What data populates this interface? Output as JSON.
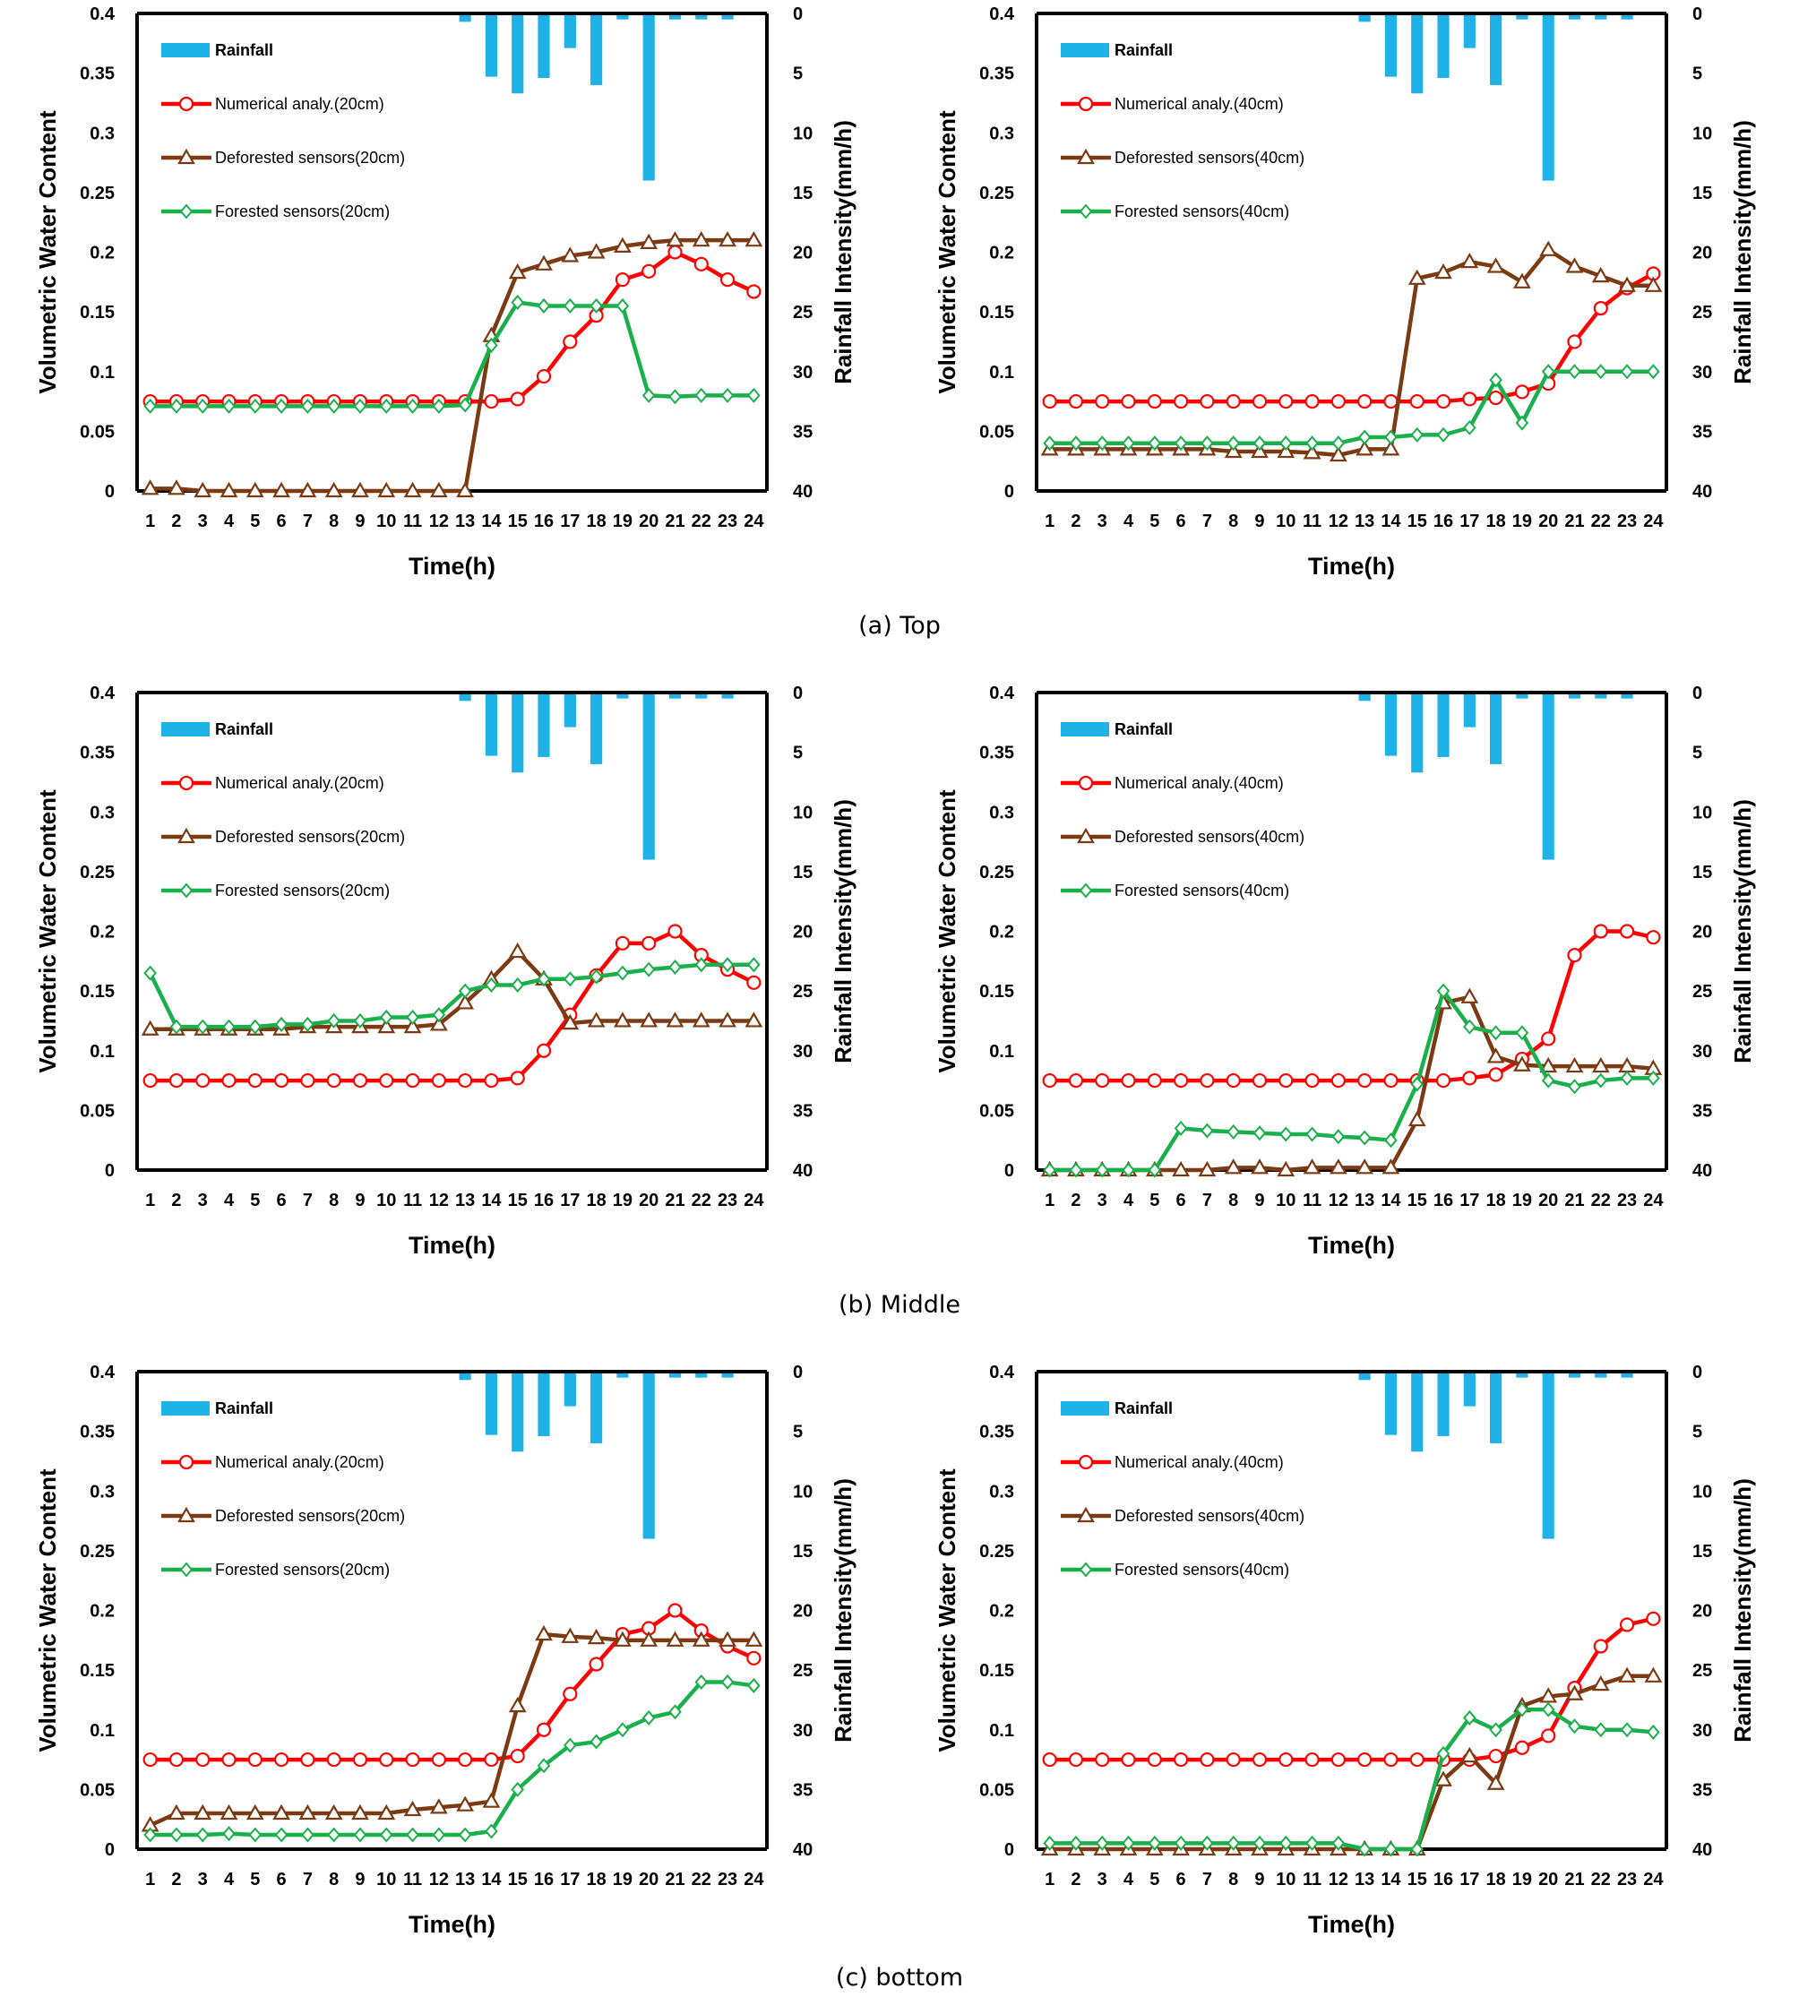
{
  "captions": [
    "(a)  Top",
    "(b)  Middle",
    "(c)  bottom"
  ],
  "colors": {
    "rainfall": "#1fb2e6",
    "numerical": "#ff0000",
    "deforested": "#7b3a12",
    "forested": "#19b04b"
  },
  "chart_data": [
    {
      "type": "line",
      "panel": "Top 20cm",
      "categories": [
        "1",
        "2",
        "3",
        "4",
        "5",
        "6",
        "7",
        "8",
        "9",
        "10",
        "11",
        "12",
        "13",
        "14",
        "15",
        "16",
        "17",
        "18",
        "19",
        "20",
        "21",
        "22",
        "23",
        "24"
      ],
      "xlabel": "Time(h)",
      "ylabel": "Volumetric Water Content",
      "y2label": "Rainfall Intensity(mm/h)",
      "ylim": [
        0,
        0.4
      ],
      "y2lim": [
        40,
        0
      ],
      "yticks": [
        "0",
        "0.05",
        "0.1",
        "0.15",
        "0.2",
        "0.25",
        "0.3",
        "0.35",
        "0.4"
      ],
      "y2ticks": [
        "0",
        "5",
        "10",
        "15",
        "20",
        "25",
        "30",
        "35",
        "40"
      ],
      "legend": "top-left",
      "rainfall": {
        "name": "Rainfall",
        "values": [
          0,
          0,
          0,
          0,
          0,
          0,
          0,
          0,
          0,
          0,
          0,
          0,
          0.7,
          5.3,
          6.7,
          5.4,
          2.9,
          6,
          0.5,
          14,
          0.5,
          0.5,
          0.5,
          0
        ]
      },
      "series": [
        {
          "name": "Numerical analy.(20cm)",
          "values": [
            0.075,
            0.075,
            0.075,
            0.075,
            0.075,
            0.075,
            0.075,
            0.075,
            0.075,
            0.075,
            0.075,
            0.075,
            0.075,
            0.075,
            0.077,
            0.096,
            0.125,
            0.147,
            0.177,
            0.184,
            0.2,
            0.19,
            0.177,
            0.167
          ]
        },
        {
          "name": "Deforested sensors(20cm)",
          "values": [
            0.002,
            0.002,
            0,
            0,
            0,
            0,
            0,
            0,
            0,
            0,
            0,
            0,
            0,
            0.13,
            0.183,
            0.19,
            0.197,
            0.2,
            0.205,
            0.208,
            0.21,
            0.21,
            0.21,
            0.21
          ]
        },
        {
          "name": "Forested sensors(20cm)",
          "values": [
            0.071,
            0.071,
            0.071,
            0.071,
            0.071,
            0.071,
            0.071,
            0.071,
            0.071,
            0.071,
            0.071,
            0.071,
            0.072,
            0.122,
            0.158,
            0.155,
            0.155,
            0.155,
            0.155,
            0.08,
            0.079,
            0.08,
            0.08,
            0.08
          ]
        }
      ]
    },
    {
      "type": "line",
      "panel": "Top 40cm",
      "categories": [
        "1",
        "2",
        "3",
        "4",
        "5",
        "6",
        "7",
        "8",
        "9",
        "10",
        "11",
        "12",
        "13",
        "14",
        "15",
        "16",
        "17",
        "18",
        "19",
        "20",
        "21",
        "22",
        "23",
        "24"
      ],
      "xlabel": "Time(h)",
      "ylabel": "Volumetric Water Content",
      "y2label": "Rainfall Intensity(mm/h)",
      "ylim": [
        0,
        0.4
      ],
      "y2lim": [
        40,
        0
      ],
      "yticks": [
        "0",
        "0.05",
        "0.1",
        "0.15",
        "0.2",
        "0.25",
        "0.3",
        "0.35",
        "0.4"
      ],
      "y2ticks": [
        "0",
        "5",
        "10",
        "15",
        "20",
        "25",
        "30",
        "35",
        "40"
      ],
      "legend": "top-left",
      "rainfall": {
        "name": "Rainfall",
        "values": [
          0,
          0,
          0,
          0,
          0,
          0,
          0,
          0,
          0,
          0,
          0,
          0,
          0.7,
          5.3,
          6.7,
          5.4,
          2.9,
          6,
          0.5,
          14,
          0.5,
          0.5,
          0.5,
          0
        ]
      },
      "series": [
        {
          "name": "Numerical analy.(40cm)",
          "values": [
            0.075,
            0.075,
            0.075,
            0.075,
            0.075,
            0.075,
            0.075,
            0.075,
            0.075,
            0.075,
            0.075,
            0.075,
            0.075,
            0.075,
            0.075,
            0.075,
            0.077,
            0.078,
            0.083,
            0.09,
            0.125,
            0.153,
            0.17,
            0.182
          ]
        },
        {
          "name": "Deforested sensors(40cm)",
          "values": [
            0.035,
            0.035,
            0.035,
            0.035,
            0.035,
            0.035,
            0.035,
            0.033,
            0.033,
            0.033,
            0.032,
            0.03,
            0.035,
            0.035,
            0.178,
            0.183,
            0.192,
            0.188,
            0.175,
            0.202,
            0.188,
            0.18,
            0.172,
            0.172
          ]
        },
        {
          "name": "Forested sensors(40cm)",
          "values": [
            0.04,
            0.04,
            0.04,
            0.04,
            0.04,
            0.04,
            0.04,
            0.04,
            0.04,
            0.04,
            0.04,
            0.04,
            0.045,
            0.045,
            0.047,
            0.047,
            0.053,
            0.093,
            0.057,
            0.1,
            0.1,
            0.1,
            0.1,
            0.1
          ]
        }
      ]
    },
    {
      "type": "line",
      "panel": "Middle 20cm",
      "categories": [
        "1",
        "2",
        "3",
        "4",
        "5",
        "6",
        "7",
        "8",
        "9",
        "10",
        "11",
        "12",
        "13",
        "14",
        "15",
        "16",
        "17",
        "18",
        "19",
        "20",
        "21",
        "22",
        "23",
        "24"
      ],
      "xlabel": "Time(h)",
      "ylabel": "Volumetric Water Content",
      "y2label": "Rainfall Intensity(mm/h)",
      "ylim": [
        0,
        0.4
      ],
      "y2lim": [
        40,
        0
      ],
      "yticks": [
        "0",
        "0.05",
        "0.1",
        "0.15",
        "0.2",
        "0.25",
        "0.3",
        "0.35",
        "0.4"
      ],
      "y2ticks": [
        "0",
        "5",
        "10",
        "15",
        "20",
        "25",
        "30",
        "35",
        "40"
      ],
      "legend": "top-left",
      "rainfall": {
        "name": "Rainfall",
        "values": [
          0,
          0,
          0,
          0,
          0,
          0,
          0,
          0,
          0,
          0,
          0,
          0,
          0.7,
          5.3,
          6.7,
          5.4,
          2.9,
          6,
          0.5,
          14,
          0.5,
          0.5,
          0.5,
          0
        ]
      },
      "series": [
        {
          "name": "Numerical analy.(20cm)",
          "values": [
            0.075,
            0.075,
            0.075,
            0.075,
            0.075,
            0.075,
            0.075,
            0.075,
            0.075,
            0.075,
            0.075,
            0.075,
            0.075,
            0.075,
            0.077,
            0.1,
            0.13,
            0.163,
            0.19,
            0.19,
            0.2,
            0.18,
            0.168,
            0.157
          ]
        },
        {
          "name": "Deforested sensors(20cm)",
          "values": [
            0.118,
            0.118,
            0.118,
            0.118,
            0.118,
            0.118,
            0.12,
            0.12,
            0.12,
            0.12,
            0.12,
            0.122,
            0.14,
            0.16,
            0.183,
            0.16,
            0.123,
            0.125,
            0.125,
            0.125,
            0.125,
            0.125,
            0.125,
            0.125
          ]
        },
        {
          "name": "Forested sensors(20cm)",
          "values": [
            0.165,
            0.12,
            0.12,
            0.12,
            0.12,
            0.122,
            0.122,
            0.125,
            0.125,
            0.128,
            0.128,
            0.13,
            0.15,
            0.155,
            0.155,
            0.16,
            0.16,
            0.162,
            0.165,
            0.168,
            0.17,
            0.172,
            0.172,
            0.172
          ]
        }
      ]
    },
    {
      "type": "line",
      "panel": "Middle 40cm",
      "categories": [
        "1",
        "2",
        "3",
        "4",
        "5",
        "6",
        "7",
        "8",
        "9",
        "10",
        "11",
        "12",
        "13",
        "14",
        "15",
        "16",
        "17",
        "18",
        "19",
        "20",
        "21",
        "22",
        "23",
        "24"
      ],
      "xlabel": "Time(h)",
      "ylabel": "Volumetric Water Content",
      "y2label": "Rainfall Intensity(mm/h)",
      "ylim": [
        0,
        0.4
      ],
      "y2lim": [
        40,
        0
      ],
      "yticks": [
        "0",
        "0.05",
        "0.1",
        "0.15",
        "0.2",
        "0.25",
        "0.3",
        "0.35",
        "0.4"
      ],
      "y2ticks": [
        "0",
        "5",
        "10",
        "15",
        "20",
        "25",
        "30",
        "35",
        "40"
      ],
      "legend": "top-left",
      "rainfall": {
        "name": "Rainfall",
        "values": [
          0,
          0,
          0,
          0,
          0,
          0,
          0,
          0,
          0,
          0,
          0,
          0,
          0.7,
          5.3,
          6.7,
          5.4,
          2.9,
          6,
          0.5,
          14,
          0.5,
          0.5,
          0.5,
          0
        ]
      },
      "series": [
        {
          "name": "Numerical analy.(40cm)",
          "values": [
            0.075,
            0.075,
            0.075,
            0.075,
            0.075,
            0.075,
            0.075,
            0.075,
            0.075,
            0.075,
            0.075,
            0.075,
            0.075,
            0.075,
            0.075,
            0.075,
            0.077,
            0.08,
            0.093,
            0.11,
            0.18,
            0.2,
            0.2,
            0.195
          ]
        },
        {
          "name": "Deforested sensors(40cm)",
          "values": [
            0,
            0,
            0,
            0,
            0,
            0,
            0,
            0.002,
            0.002,
            0,
            0.002,
            0.002,
            0.002,
            0.002,
            0.042,
            0.14,
            0.145,
            0.095,
            0.088,
            0.087,
            0.087,
            0.087,
            0.087,
            0.085
          ]
        },
        {
          "name": "Forested sensors(40cm)",
          "values": [
            0,
            0,
            0,
            0,
            0,
            0.035,
            0.033,
            0.032,
            0.031,
            0.03,
            0.03,
            0.028,
            0.027,
            0.025,
            0.072,
            0.15,
            0.12,
            0.115,
            0.115,
            0.075,
            0.07,
            0.075,
            0.077,
            0.077
          ]
        }
      ]
    },
    {
      "type": "line",
      "panel": "bottom 20cm",
      "categories": [
        "1",
        "2",
        "3",
        "4",
        "5",
        "6",
        "7",
        "8",
        "9",
        "10",
        "11",
        "12",
        "13",
        "14",
        "15",
        "16",
        "17",
        "18",
        "19",
        "20",
        "21",
        "22",
        "23",
        "24"
      ],
      "xlabel": "Time(h)",
      "ylabel": "Volumetric Water Content",
      "y2label": "Rainfall Intensity(mm/h)",
      "ylim": [
        0,
        0.4
      ],
      "y2lim": [
        40,
        0
      ],
      "yticks": [
        "0",
        "0.05",
        "0.1",
        "0.15",
        "0.2",
        "0.25",
        "0.3",
        "0.35",
        "0.4"
      ],
      "y2ticks": [
        "0",
        "5",
        "10",
        "15",
        "20",
        "25",
        "30",
        "35",
        "40"
      ],
      "legend": "top-left",
      "rainfall": {
        "name": "Rainfall",
        "values": [
          0,
          0,
          0,
          0,
          0,
          0,
          0,
          0,
          0,
          0,
          0,
          0,
          0.7,
          5.3,
          6.7,
          5.4,
          2.9,
          6,
          0.5,
          14,
          0.5,
          0.5,
          0.5,
          0
        ]
      },
      "series": [
        {
          "name": "Numerical analy.(20cm)",
          "values": [
            0.075,
            0.075,
            0.075,
            0.075,
            0.075,
            0.075,
            0.075,
            0.075,
            0.075,
            0.075,
            0.075,
            0.075,
            0.075,
            0.075,
            0.078,
            0.1,
            0.13,
            0.155,
            0.18,
            0.185,
            0.2,
            0.183,
            0.17,
            0.16
          ]
        },
        {
          "name": "Deforested sensors(20cm)",
          "values": [
            0.02,
            0.03,
            0.03,
            0.03,
            0.03,
            0.03,
            0.03,
            0.03,
            0.03,
            0.03,
            0.033,
            0.035,
            0.037,
            0.04,
            0.12,
            0.18,
            0.178,
            0.177,
            0.175,
            0.175,
            0.175,
            0.175,
            0.175,
            0.175
          ]
        },
        {
          "name": "Forested sensors(20cm)",
          "values": [
            0.012,
            0.012,
            0.012,
            0.013,
            0.012,
            0.012,
            0.012,
            0.012,
            0.012,
            0.012,
            0.012,
            0.012,
            0.012,
            0.015,
            0.05,
            0.07,
            0.087,
            0.09,
            0.1,
            0.11,
            0.115,
            0.14,
            0.14,
            0.137
          ]
        }
      ]
    },
    {
      "type": "line",
      "panel": "bottom 40cm",
      "categories": [
        "1",
        "2",
        "3",
        "4",
        "5",
        "6",
        "7",
        "8",
        "9",
        "10",
        "11",
        "12",
        "13",
        "14",
        "15",
        "16",
        "17",
        "18",
        "19",
        "20",
        "21",
        "22",
        "23",
        "24"
      ],
      "xlabel": "Time(h)",
      "ylabel": "Volumetric Water Content",
      "y2label": "Rainfall Intensity(mm/h)",
      "ylim": [
        0,
        0.4
      ],
      "y2lim": [
        40,
        0
      ],
      "yticks": [
        "0",
        "0.05",
        "0.1",
        "0.15",
        "0.2",
        "0.25",
        "0.3",
        "0.35",
        "0.4"
      ],
      "y2ticks": [
        "0",
        "5",
        "10",
        "15",
        "20",
        "25",
        "30",
        "35",
        "40"
      ],
      "legend": "top-left",
      "rainfall": {
        "name": "Rainfall",
        "values": [
          0,
          0,
          0,
          0,
          0,
          0,
          0,
          0,
          0,
          0,
          0,
          0,
          0.7,
          5.3,
          6.7,
          5.4,
          2.9,
          6,
          0.5,
          14,
          0.5,
          0.5,
          0.5,
          0
        ]
      },
      "series": [
        {
          "name": "Numerical analy.(40cm)",
          "values": [
            0.075,
            0.075,
            0.075,
            0.075,
            0.075,
            0.075,
            0.075,
            0.075,
            0.075,
            0.075,
            0.075,
            0.075,
            0.075,
            0.075,
            0.075,
            0.075,
            0.075,
            0.078,
            0.085,
            0.095,
            0.135,
            0.17,
            0.188,
            0.193
          ]
        },
        {
          "name": "Deforested sensors(40cm)",
          "values": [
            0,
            0,
            0,
            0,
            0,
            0,
            0,
            0,
            0,
            0,
            0,
            0,
            0,
            0,
            0,
            0.058,
            0.078,
            0.055,
            0.12,
            0.128,
            0.13,
            0.138,
            0.145,
            0.145
          ]
        },
        {
          "name": "Forested sensors(40cm)",
          "values": [
            0.005,
            0.005,
            0.005,
            0.005,
            0.005,
            0.005,
            0.005,
            0.005,
            0.005,
            0.005,
            0.005,
            0.005,
            0,
            0,
            0,
            0.08,
            0.11,
            0.1,
            0.117,
            0.117,
            0.103,
            0.1,
            0.1,
            0.098
          ]
        }
      ]
    }
  ]
}
